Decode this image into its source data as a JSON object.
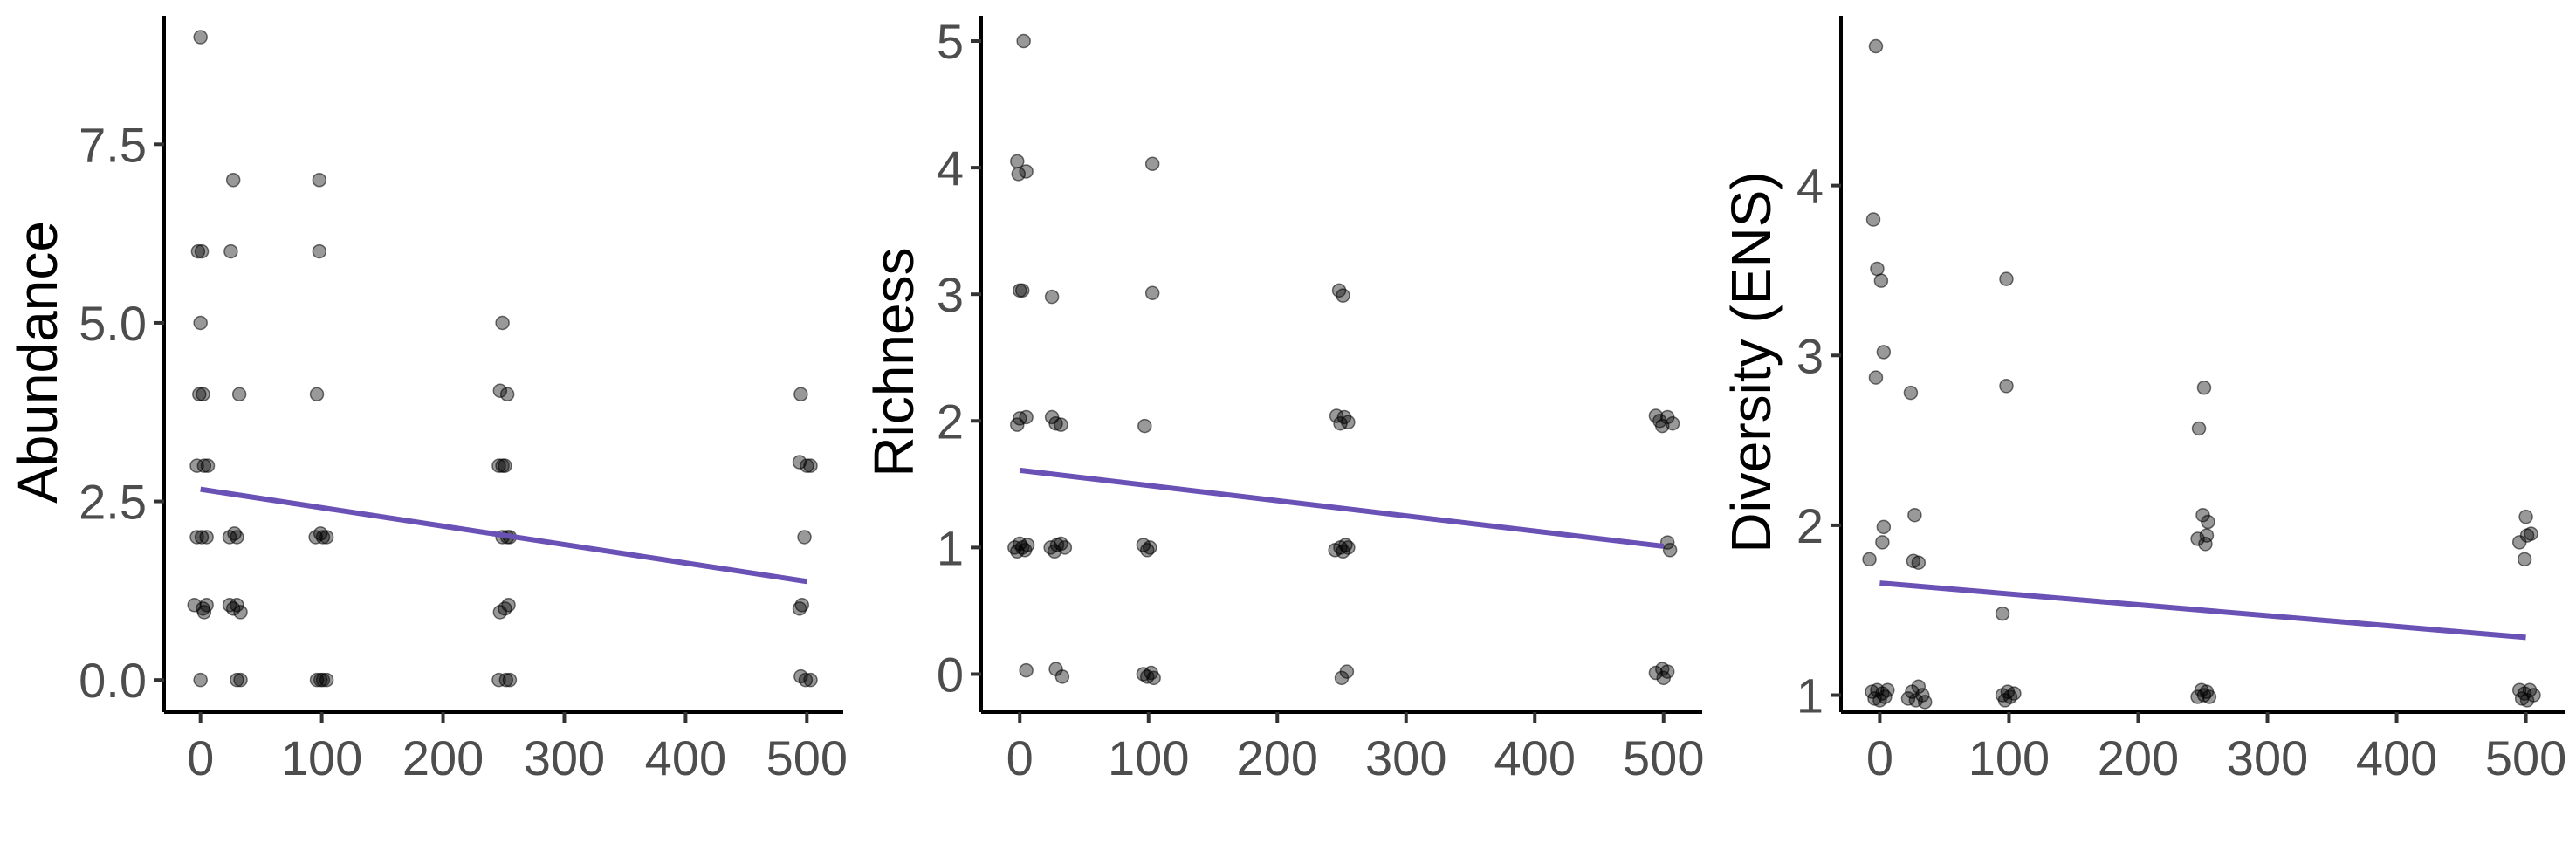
{
  "colors": {
    "trend": "#6a51b5",
    "point_fill": "rgba(0,0,0,0.4)",
    "axis": "#000000",
    "tick_text": "#4d4d4d"
  },
  "chart_data": [
    {
      "type": "scatter",
      "title": "",
      "xlabel": "",
      "ylabel": "Abundance",
      "xlim": [
        -30,
        530
      ],
      "ylim": [
        -0.45,
        9.3
      ],
      "xticks": [
        0,
        100,
        200,
        300,
        400,
        500
      ],
      "xtick_labels": [
        "0",
        "100",
        "200",
        "300",
        "400",
        "500"
      ],
      "yticks": [
        0.0,
        2.5,
        5.0,
        7.5
      ],
      "ytick_labels": [
        "0.0",
        "2.5",
        "5.0",
        "7.5"
      ],
      "grid": false,
      "trend": {
        "x": [
          0,
          500
        ],
        "y": [
          2.67,
          1.38
        ]
      },
      "points": [
        {
          "x": 0,
          "y": 9
        },
        {
          "x": -2,
          "y": 6
        },
        {
          "x": 1,
          "y": 6
        },
        {
          "x": 0,
          "y": 5
        },
        {
          "x": -1,
          "y": 4
        },
        {
          "x": 2,
          "y": 4
        },
        {
          "x": -3,
          "y": 3
        },
        {
          "x": 3,
          "y": 3
        },
        {
          "x": 6,
          "y": 3
        },
        {
          "x": -3,
          "y": 2
        },
        {
          "x": 1,
          "y": 2
        },
        {
          "x": 5,
          "y": 2
        },
        {
          "x": -5,
          "y": 1.05
        },
        {
          "x": 2,
          "y": 1
        },
        {
          "x": 5,
          "y": 1.05
        },
        {
          "x": 3,
          "y": 0.95
        },
        {
          "x": 0,
          "y": 0
        },
        {
          "x": 27,
          "y": 7
        },
        {
          "x": 25,
          "y": 6
        },
        {
          "x": 32,
          "y": 4
        },
        {
          "x": 24,
          "y": 2
        },
        {
          "x": 28,
          "y": 2.05
        },
        {
          "x": 30,
          "y": 2
        },
        {
          "x": 24,
          "y": 1.05
        },
        {
          "x": 27,
          "y": 1
        },
        {
          "x": 30,
          "y": 1.05
        },
        {
          "x": 33,
          "y": 0.95
        },
        {
          "x": 30,
          "y": 0
        },
        {
          "x": 33,
          "y": 0
        },
        {
          "x": 98,
          "y": 7
        },
        {
          "x": 98,
          "y": 6
        },
        {
          "x": 96,
          "y": 4
        },
        {
          "x": 95,
          "y": 2
        },
        {
          "x": 99,
          "y": 2.05
        },
        {
          "x": 101,
          "y": 2
        },
        {
          "x": 104,
          "y": 2
        },
        {
          "x": 96,
          "y": 0
        },
        {
          "x": 99,
          "y": 0
        },
        {
          "x": 101,
          "y": 0
        },
        {
          "x": 104,
          "y": 0
        },
        {
          "x": 249,
          "y": 5
        },
        {
          "x": 247,
          "y": 4.05
        },
        {
          "x": 253,
          "y": 4
        },
        {
          "x": 246,
          "y": 3
        },
        {
          "x": 249,
          "y": 3
        },
        {
          "x": 251,
          "y": 3
        },
        {
          "x": 249,
          "y": 2
        },
        {
          "x": 253,
          "y": 2
        },
        {
          "x": 255,
          "y": 2
        },
        {
          "x": 247,
          "y": 0.95
        },
        {
          "x": 251,
          "y": 1
        },
        {
          "x": 254,
          "y": 1.05
        },
        {
          "x": 246,
          "y": 0
        },
        {
          "x": 252,
          "y": 0
        },
        {
          "x": 255,
          "y": 0
        },
        {
          "x": 495,
          "y": 4
        },
        {
          "x": 494,
          "y": 3.05
        },
        {
          "x": 500,
          "y": 3
        },
        {
          "x": 503,
          "y": 3
        },
        {
          "x": 498,
          "y": 2
        },
        {
          "x": 494,
          "y": 1
        },
        {
          "x": 496,
          "y": 1.05
        },
        {
          "x": 495,
          "y": 0.05
        },
        {
          "x": 499,
          "y": 0
        },
        {
          "x": 503,
          "y": 0
        }
      ]
    },
    {
      "type": "scatter",
      "title": "",
      "xlabel": "",
      "ylabel": "Richness",
      "xlim": [
        -30,
        530
      ],
      "ylim": [
        -0.3,
        5.2
      ],
      "xticks": [
        0,
        100,
        200,
        300,
        400,
        500
      ],
      "xtick_labels": [
        "0",
        "100",
        "200",
        "300",
        "400",
        "500"
      ],
      "yticks": [
        0,
        1,
        2,
        3,
        4,
        5
      ],
      "ytick_labels": [
        "0",
        "1",
        "2",
        "3",
        "4",
        "5"
      ],
      "grid": false,
      "trend": {
        "x": [
          0,
          500
        ],
        "y": [
          1.61,
          1.01
        ]
      },
      "points": [
        {
          "x": 3,
          "y": 5
        },
        {
          "x": -2,
          "y": 4.05
        },
        {
          "x": 5,
          "y": 3.97
        },
        {
          "x": -1,
          "y": 3.95
        },
        {
          "x": 0,
          "y": 3.03
        },
        {
          "x": 2,
          "y": 3.03
        },
        {
          "x": -2,
          "y": 1.97
        },
        {
          "x": 0,
          "y": 2.02
        },
        {
          "x": 5,
          "y": 2.03
        },
        {
          "x": -4,
          "y": 1
        },
        {
          "x": -2,
          "y": 0.97
        },
        {
          "x": 0,
          "y": 1.03
        },
        {
          "x": 2,
          "y": 1
        },
        {
          "x": 4,
          "y": 0.98
        },
        {
          "x": 6,
          "y": 1.02
        },
        {
          "x": 5,
          "y": 0.03
        },
        {
          "x": 25,
          "y": 2.98
        },
        {
          "x": 25,
          "y": 2.03
        },
        {
          "x": 28,
          "y": 1.98
        },
        {
          "x": 32,
          "y": 1.97
        },
        {
          "x": 24,
          "y": 1
        },
        {
          "x": 27,
          "y": 0.97
        },
        {
          "x": 29,
          "y": 1.02
        },
        {
          "x": 32,
          "y": 1.03
        },
        {
          "x": 35,
          "y": 1
        },
        {
          "x": 28,
          "y": 0.04
        },
        {
          "x": 33,
          "y": -0.02
        },
        {
          "x": 103,
          "y": 4.03
        },
        {
          "x": 103,
          "y": 3.01
        },
        {
          "x": 97,
          "y": 1.96
        },
        {
          "x": 96,
          "y": 1.02
        },
        {
          "x": 99,
          "y": 0.98
        },
        {
          "x": 101,
          "y": 1
        },
        {
          "x": 96,
          "y": 0
        },
        {
          "x": 99,
          "y": -0.02
        },
        {
          "x": 102,
          "y": 0.01
        },
        {
          "x": 104,
          "y": -0.03
        },
        {
          "x": 248,
          "y": 3.03
        },
        {
          "x": 251,
          "y": 2.99
        },
        {
          "x": 246,
          "y": 2.04
        },
        {
          "x": 249,
          "y": 1.98
        },
        {
          "x": 252,
          "y": 2.03
        },
        {
          "x": 255,
          "y": 1.99
        },
        {
          "x": 245,
          "y": 0.98
        },
        {
          "x": 249,
          "y": 1
        },
        {
          "x": 251,
          "y": 0.97
        },
        {
          "x": 253,
          "y": 1.02
        },
        {
          "x": 255,
          "y": 1
        },
        {
          "x": 250,
          "y": -0.03
        },
        {
          "x": 254,
          "y": 0.02
        },
        {
          "x": 494,
          "y": 2.04
        },
        {
          "x": 497,
          "y": 2
        },
        {
          "x": 499,
          "y": 1.96
        },
        {
          "x": 503,
          "y": 2.03
        },
        {
          "x": 507,
          "y": 1.98
        },
        {
          "x": 503,
          "y": 1.04
        },
        {
          "x": 505,
          "y": 0.98
        },
        {
          "x": 494,
          "y": 0.01
        },
        {
          "x": 499,
          "y": 0.04
        },
        {
          "x": 500,
          "y": -0.03
        },
        {
          "x": 503,
          "y": 0.02
        }
      ]
    },
    {
      "type": "scatter",
      "title": "",
      "xlabel": "",
      "ylabel": "Diversity (ENS)",
      "xlim": [
        -30,
        530
      ],
      "ylim": [
        0.9,
        5.0
      ],
      "xticks": [
        0,
        100,
        200,
        300,
        400,
        500
      ],
      "xtick_labels": [
        "0",
        "100",
        "200",
        "300",
        "400",
        "500"
      ],
      "yticks": [
        1,
        2,
        3,
        4
      ],
      "ytick_labels": [
        "1",
        "2",
        "3",
        "4"
      ],
      "grid": false,
      "trend": {
        "x": [
          0,
          500
        ],
        "y": [
          1.66,
          1.34
        ]
      },
      "points": [
        {
          "x": -3,
          "y": 4.82
        },
        {
          "x": -5,
          "y": 3.8
        },
        {
          "x": -2,
          "y": 3.51
        },
        {
          "x": 1,
          "y": 3.44
        },
        {
          "x": 3,
          "y": 3.02
        },
        {
          "x": -3,
          "y": 2.87
        },
        {
          "x": 3,
          "y": 1.99
        },
        {
          "x": 2,
          "y": 1.9
        },
        {
          "x": -8,
          "y": 1.8
        },
        {
          "x": -6,
          "y": 1.02
        },
        {
          "x": -4,
          "y": 0.98
        },
        {
          "x": -2,
          "y": 1.03
        },
        {
          "x": 0,
          "y": 0.97
        },
        {
          "x": 2,
          "y": 1.01
        },
        {
          "x": 4,
          "y": 0.99
        },
        {
          "x": 6,
          "y": 1.03
        },
        {
          "x": 24,
          "y": 2.78
        },
        {
          "x": 27,
          "y": 2.06
        },
        {
          "x": 26,
          "y": 1.79
        },
        {
          "x": 30,
          "y": 1.78
        },
        {
          "x": 22,
          "y": 0.98
        },
        {
          "x": 25,
          "y": 1.02
        },
        {
          "x": 28,
          "y": 0.97
        },
        {
          "x": 30,
          "y": 1.05
        },
        {
          "x": 33,
          "y": 1
        },
        {
          "x": 35,
          "y": 0.96
        },
        {
          "x": 98,
          "y": 3.45
        },
        {
          "x": 98,
          "y": 2.82
        },
        {
          "x": 95,
          "y": 1.48
        },
        {
          "x": 95,
          "y": 1
        },
        {
          "x": 97,
          "y": 0.97
        },
        {
          "x": 99,
          "y": 1.02
        },
        {
          "x": 101,
          "y": 0.99
        },
        {
          "x": 104,
          "y": 1.01
        },
        {
          "x": 247,
          "y": 2.57
        },
        {
          "x": 251,
          "y": 2.81
        },
        {
          "x": 250,
          "y": 2.06
        },
        {
          "x": 254,
          "y": 2.02
        },
        {
          "x": 246,
          "y": 1.92
        },
        {
          "x": 252,
          "y": 1.89
        },
        {
          "x": 253,
          "y": 1.94
        },
        {
          "x": 246,
          "y": 0.99
        },
        {
          "x": 249,
          "y": 1.03
        },
        {
          "x": 251,
          "y": 1
        },
        {
          "x": 253,
          "y": 1.02
        },
        {
          "x": 255,
          "y": 0.99
        },
        {
          "x": 500,
          "y": 2.05
        },
        {
          "x": 495,
          "y": 1.9
        },
        {
          "x": 501,
          "y": 1.94
        },
        {
          "x": 504,
          "y": 1.95
        },
        {
          "x": 499,
          "y": 1.8
        },
        {
          "x": 495,
          "y": 1.03
        },
        {
          "x": 497,
          "y": 0.98
        },
        {
          "x": 499,
          "y": 1.01
        },
        {
          "x": 501,
          "y": 0.97
        },
        {
          "x": 503,
          "y": 1.03
        },
        {
          "x": 506,
          "y": 1
        }
      ]
    }
  ]
}
